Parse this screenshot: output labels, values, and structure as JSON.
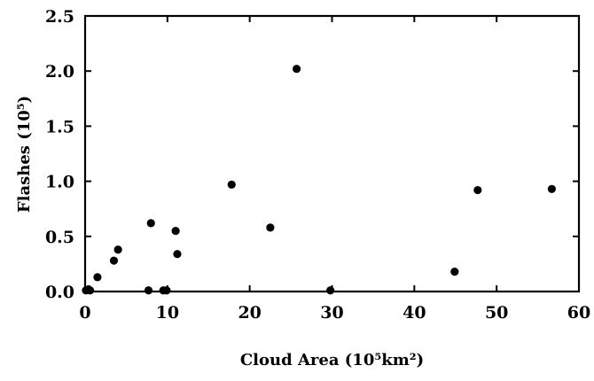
{
  "chart_data": {
    "type": "scatter",
    "title": "",
    "xlabel": "Cloud Area (10⁵km²)",
    "ylabel": "Flashes (10⁵)",
    "xlim": [
      0,
      60
    ],
    "ylim": [
      0,
      2.5
    ],
    "xticks": [
      0,
      10,
      20,
      30,
      40,
      50,
      60
    ],
    "yticks": [
      0.0,
      0.5,
      1.0,
      1.5,
      2.0,
      2.5
    ],
    "xtick_labels": [
      "0",
      "10",
      "20",
      "30",
      "40",
      "50",
      "60"
    ],
    "ytick_labels": [
      "0.0",
      "0.5",
      "1.0",
      "1.5",
      "2.0",
      "2.5"
    ],
    "grid": false,
    "marker_color": "#000000",
    "series": [
      {
        "x": [
          0.1,
          0.4,
          0.6,
          1.5,
          3.5,
          4.0,
          7.7,
          8.0,
          9.5,
          9.9,
          11.0,
          11.2,
          17.8,
          22.5,
          25.7,
          29.8,
          44.9,
          47.7,
          56.7
        ],
        "y": [
          0.01,
          0.02,
          0.01,
          0.13,
          0.28,
          0.38,
          0.01,
          0.62,
          0.01,
          0.01,
          0.55,
          0.34,
          0.97,
          0.58,
          2.02,
          0.01,
          0.18,
          0.92,
          0.93
        ]
      }
    ]
  }
}
